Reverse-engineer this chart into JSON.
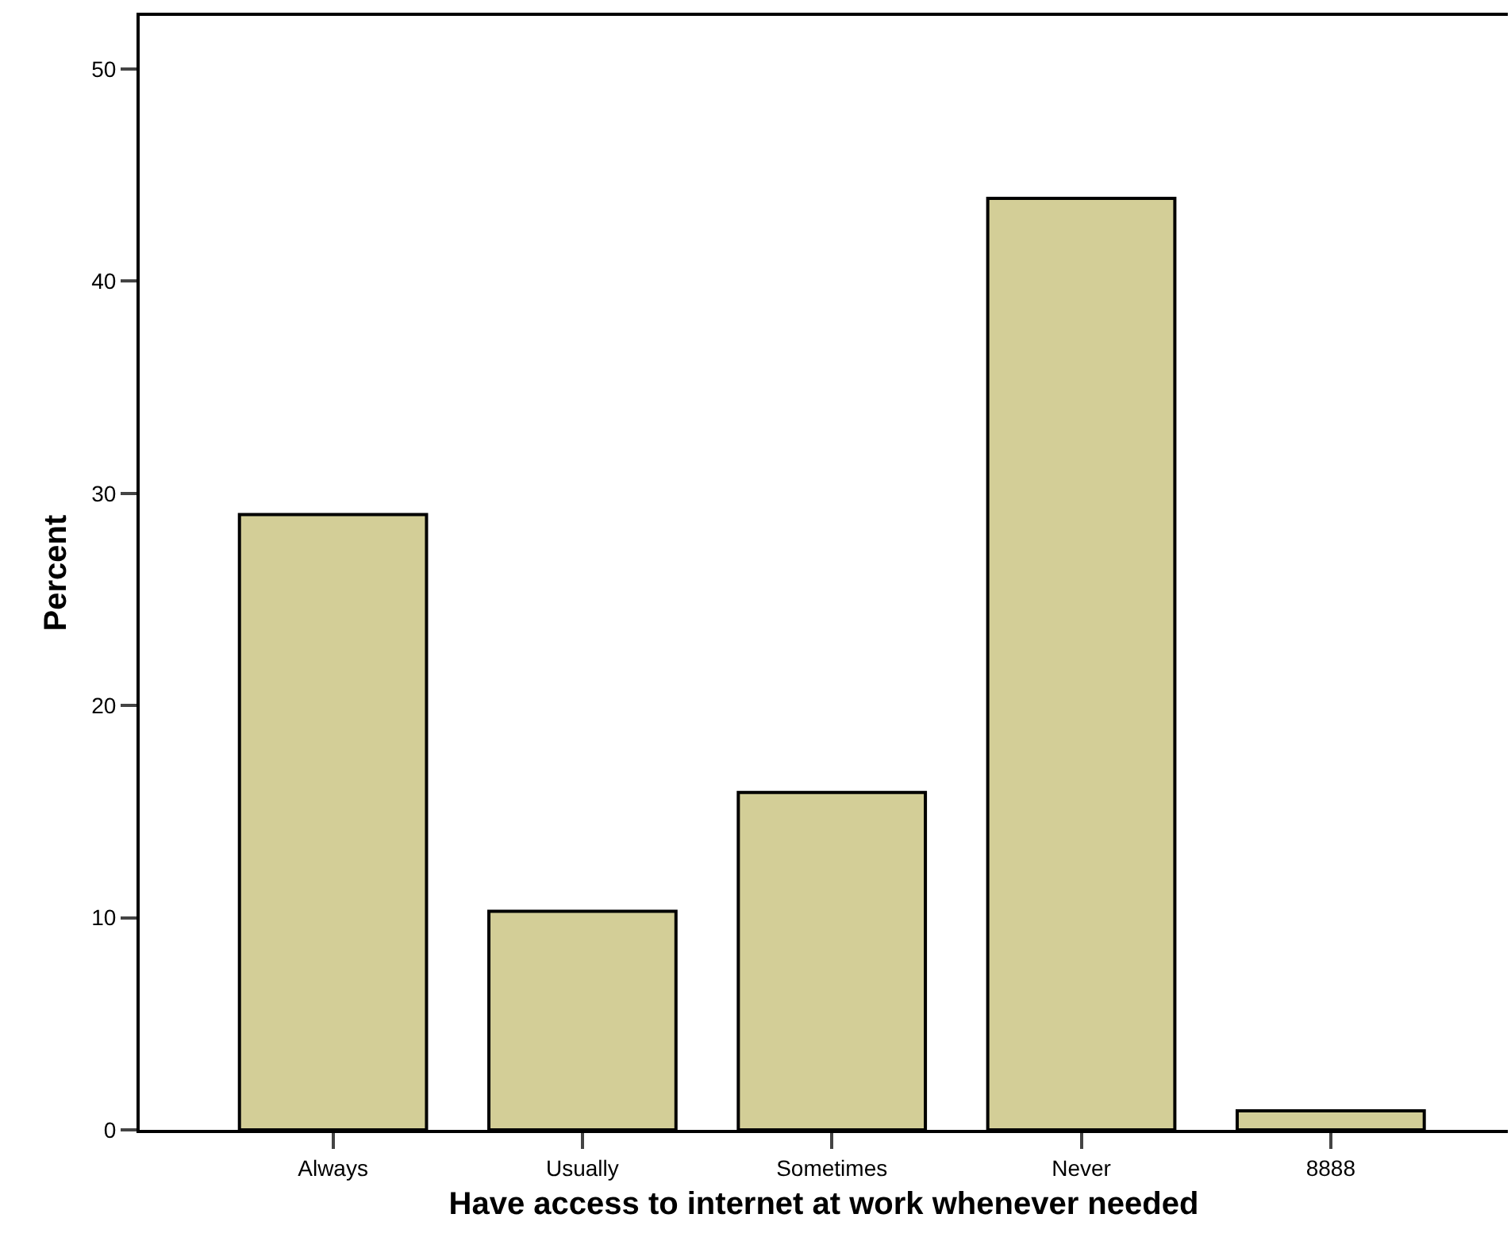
{
  "chart_data": {
    "type": "bar",
    "xlabel": "Have access to internet at work whenever needed",
    "ylabel": "Percent",
    "categories": [
      "Always",
      "Usually",
      "Sometimes",
      "Never",
      "8888"
    ],
    "values": [
      29.0,
      10.3,
      15.9,
      43.9,
      0.9
    ],
    "color": "#d3ce97",
    "ylim": [
      0,
      52.5
    ],
    "yticks": [
      0,
      10,
      20,
      30,
      40,
      50
    ]
  }
}
